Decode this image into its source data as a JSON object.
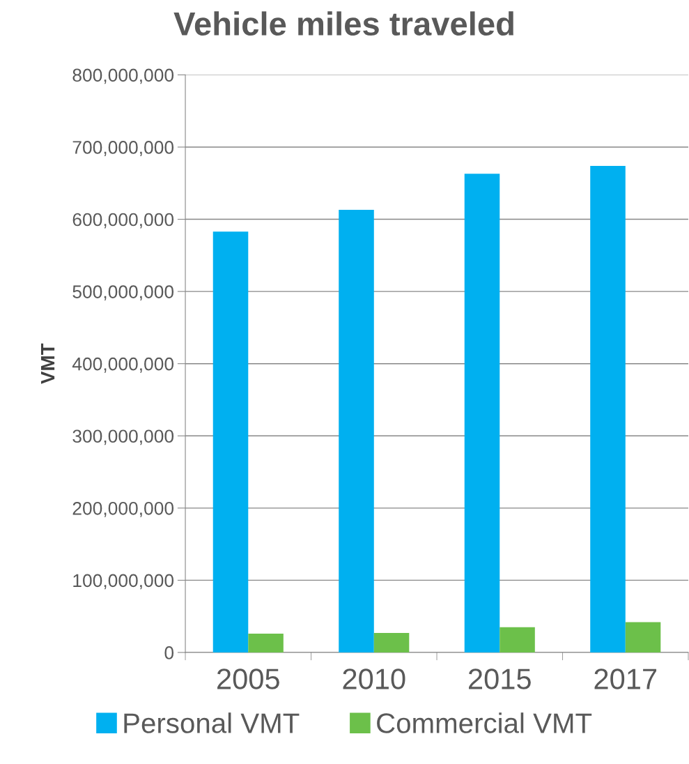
{
  "chart_data": {
    "type": "bar",
    "title": "Vehicle miles traveled",
    "ylabel": "VMT",
    "categories": [
      "2005",
      "2010",
      "2015",
      "2017"
    ],
    "series": [
      {
        "name": "Personal VMT",
        "color": "#00b0f0",
        "values": [
          583000000,
          613000000,
          663000000,
          674000000
        ]
      },
      {
        "name": "Commercial VMT",
        "color": "#6cc04a",
        "values": [
          26000000,
          27000000,
          35000000,
          42000000
        ]
      }
    ],
    "ylim": [
      0,
      800000000
    ],
    "yticks": [
      {
        "value": 0,
        "label": "0"
      },
      {
        "value": 100000000,
        "label": "100,000,000"
      },
      {
        "value": 200000000,
        "label": "200,000,000"
      },
      {
        "value": 300000000,
        "label": "300,000,000"
      },
      {
        "value": 400000000,
        "label": "400,000,000"
      },
      {
        "value": 500000000,
        "label": "500,000,000"
      },
      {
        "value": 600000000,
        "label": "600,000,000"
      },
      {
        "value": 700000000,
        "label": "700,000,000"
      },
      {
        "value": 800000000,
        "label": "800,000,000"
      }
    ],
    "grid": "y",
    "legend": "bottom"
  }
}
